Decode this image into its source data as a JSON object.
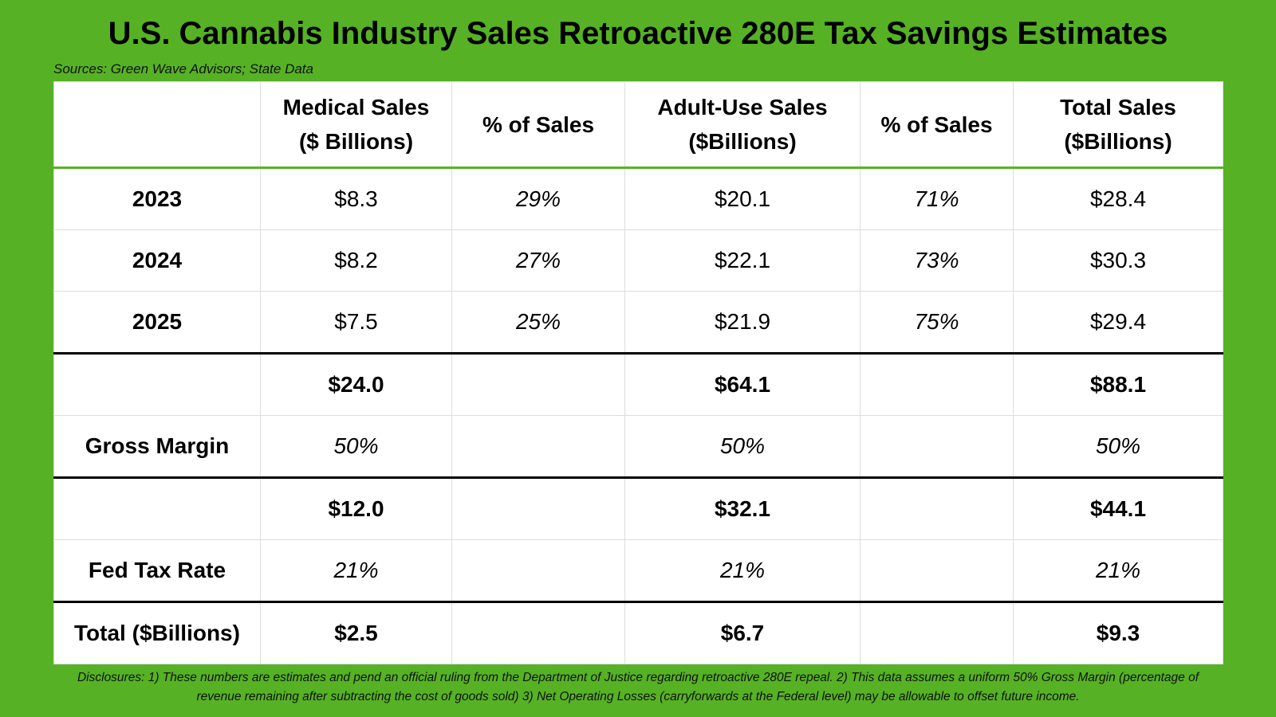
{
  "title": "U.S. Cannabis Industry Sales Retroactive 280E Tax Savings Estimates",
  "source": "Sources: Green Wave Advisors; State Data",
  "table": {
    "header": [
      null,
      [
        "Medical Sales",
        "($ Billions)"
      ],
      [
        "% of Sales"
      ],
      [
        "Adult-Use Sales",
        "($Billions)"
      ],
      [
        "% of Sales"
      ],
      [
        "Total Sales",
        "($Billions)"
      ]
    ],
    "rows": [
      [
        "2023",
        "$8.3",
        "29%",
        "$20.1",
        "71%",
        "$28.4"
      ],
      [
        "2024",
        "$8.2",
        "27%",
        "$22.1",
        "73%",
        "$30.3"
      ],
      [
        "2025",
        "$7.5",
        "25%",
        "$21.9",
        "75%",
        "$29.4"
      ],
      [
        null,
        "$24.0",
        null,
        "$64.1",
        null,
        "$88.1"
      ],
      [
        "Gross Margin",
        "50%",
        null,
        "50%",
        null,
        "50%"
      ],
      [
        null,
        "$12.0",
        null,
        "$32.1",
        null,
        "$44.1"
      ],
      [
        "Fed Tax Rate",
        "21%",
        null,
        "21%",
        null,
        "21%"
      ],
      [
        "Total ($Billions)",
        "$2.5",
        null,
        "$6.7",
        null,
        "$9.3"
      ]
    ]
  },
  "disclosure": "Disclosures: 1) These numbers are estimates and pend an official ruling from the Department of Justice regarding retroactive 280E repeal. 2) This data assumes a uniform 50% Gross Margin (percentage of revenue remaining after subtracting the cost of goods sold) 3) Net Operating Losses (carryforwards at the Federal level) may be allowable to offset future income."
}
